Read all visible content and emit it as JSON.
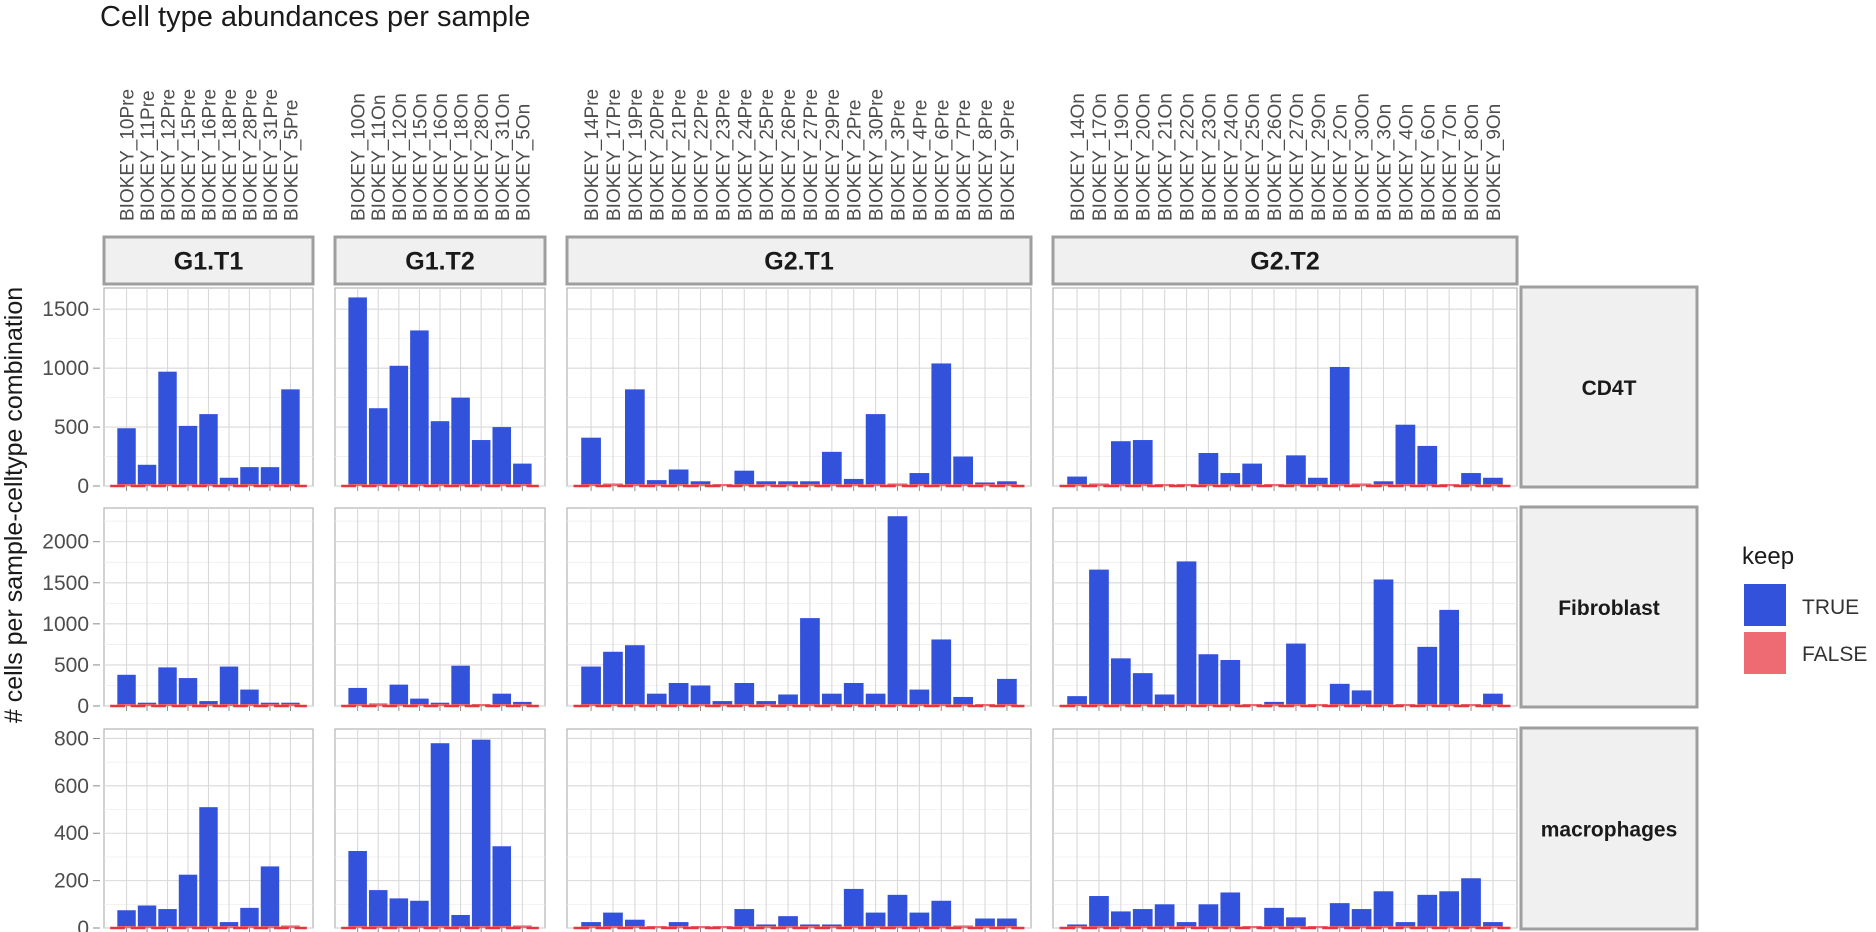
{
  "chart_data": {
    "type": "bar",
    "title": "Cell type abundances per sample",
    "ylabel": "# cells per sample-celltype combination",
    "xlabel": "",
    "grid": true,
    "legend": {
      "title": "keep",
      "position": "right",
      "entries": [
        {
          "label": "TRUE",
          "color": "#3352DC"
        },
        {
          "label": "FALSE",
          "color": "#EE6B73"
        }
      ]
    },
    "column_facets": [
      {
        "label": "G1.T1",
        "samples": [
          "BIOKEY_10Pre",
          "BIOKEY_11Pre",
          "BIOKEY_12Pre",
          "BIOKEY_15Pre",
          "BIOKEY_16Pre",
          "BIOKEY_18Pre",
          "BIOKEY_28Pre",
          "BIOKEY_31Pre",
          "BIOKEY_5Pre"
        ]
      },
      {
        "label": "G1.T2",
        "samples": [
          "BIOKEY_10On",
          "BIOKEY_11On",
          "BIOKEY_12On",
          "BIOKEY_15On",
          "BIOKEY_16On",
          "BIOKEY_18On",
          "BIOKEY_28On",
          "BIOKEY_31On",
          "BIOKEY_5On"
        ]
      },
      {
        "label": "G2.T1",
        "samples": [
          "BIOKEY_14Pre",
          "BIOKEY_17Pre",
          "BIOKEY_19Pre",
          "BIOKEY_20Pre",
          "BIOKEY_21Pre",
          "BIOKEY_22Pre",
          "BIOKEY_23Pre",
          "BIOKEY_24Pre",
          "BIOKEY_25Pre",
          "BIOKEY_26Pre",
          "BIOKEY_27Pre",
          "BIOKEY_29Pre",
          "BIOKEY_2Pre",
          "BIOKEY_30Pre",
          "BIOKEY_3Pre",
          "BIOKEY_4Pre",
          "BIOKEY_6Pre",
          "BIOKEY_7Pre",
          "BIOKEY_8Pre",
          "BIOKEY_9Pre"
        ]
      },
      {
        "label": "G2.T2",
        "samples": [
          "BIOKEY_14On",
          "BIOKEY_17On",
          "BIOKEY_19On",
          "BIOKEY_20On",
          "BIOKEY_21On",
          "BIOKEY_22On",
          "BIOKEY_23On",
          "BIOKEY_24On",
          "BIOKEY_25On",
          "BIOKEY_26On",
          "BIOKEY_27On",
          "BIOKEY_29On",
          "BIOKEY_2On",
          "BIOKEY_30On",
          "BIOKEY_3On",
          "BIOKEY_4On",
          "BIOKEY_6On",
          "BIOKEY_7On",
          "BIOKEY_8On",
          "BIOKEY_9On"
        ]
      }
    ],
    "row_facets": [
      {
        "label": "CD4T",
        "ylim": [
          0,
          1680
        ],
        "y_ticks": [
          0,
          500,
          1000,
          1500
        ],
        "keep_true": [
          [
            490,
            180,
            970,
            510,
            610,
            70,
            160,
            160,
            820
          ],
          [
            1600,
            660,
            1020,
            1320,
            550,
            750,
            390,
            500,
            190
          ],
          [
            410,
            20,
            820,
            50,
            140,
            40,
            0,
            130,
            40,
            40,
            40,
            290,
            60,
            610,
            20,
            110,
            1040,
            250,
            30,
            40
          ],
          [
            80,
            20,
            380,
            390,
            0,
            0,
            280,
            110,
            190,
            0,
            260,
            70,
            1010,
            20,
            40,
            520,
            340,
            0,
            110,
            70
          ]
        ],
        "keep_false": [
          [
            10,
            10,
            10,
            10,
            10,
            10,
            10,
            10,
            10
          ],
          [
            10,
            10,
            10,
            10,
            10,
            10,
            10,
            10,
            10
          ],
          [
            10,
            10,
            10,
            10,
            10,
            10,
            10,
            10,
            10,
            10,
            10,
            10,
            10,
            10,
            10,
            10,
            10,
            10,
            10,
            10
          ],
          [
            10,
            10,
            10,
            10,
            10,
            10,
            10,
            10,
            10,
            10,
            10,
            10,
            10,
            10,
            10,
            10,
            10,
            10,
            10,
            10
          ]
        ]
      },
      {
        "label": "Fibroblast",
        "ylim": [
          0,
          2410
        ],
        "y_ticks": [
          0,
          500,
          1000,
          1500,
          2000
        ],
        "keep_true": [
          [
            380,
            40,
            470,
            340,
            60,
            480,
            200,
            40,
            40
          ],
          [
            220,
            30,
            260,
            90,
            40,
            490,
            20,
            150,
            50
          ],
          [
            480,
            660,
            740,
            150,
            280,
            250,
            60,
            280,
            60,
            140,
            1070,
            150,
            280,
            150,
            2310,
            200,
            810,
            110,
            0,
            330
          ],
          [
            120,
            1660,
            580,
            400,
            140,
            1760,
            630,
            560,
            20,
            50,
            760,
            20,
            270,
            190,
            1540,
            20,
            720,
            1170,
            20,
            150
          ]
        ],
        "keep_false": [
          [
            15,
            15,
            15,
            15,
            15,
            15,
            15,
            15,
            15
          ],
          [
            15,
            15,
            15,
            15,
            15,
            15,
            15,
            15,
            15
          ],
          [
            15,
            15,
            15,
            15,
            15,
            15,
            15,
            15,
            15,
            15,
            15,
            15,
            15,
            15,
            15,
            15,
            15,
            15,
            15,
            15
          ],
          [
            15,
            15,
            15,
            15,
            15,
            15,
            15,
            15,
            15,
            15,
            15,
            15,
            15,
            15,
            15,
            15,
            15,
            15,
            15,
            15
          ]
        ]
      },
      {
        "label": "macrophages",
        "ylim": [
          0,
          840
        ],
        "y_ticks": [
          0,
          200,
          400,
          600,
          800
        ],
        "keep_true": [
          [
            75,
            95,
            80,
            225,
            510,
            25,
            85,
            260,
            10
          ],
          [
            325,
            160,
            125,
            115,
            780,
            55,
            795,
            345,
            10
          ],
          [
            25,
            65,
            35,
            0,
            25,
            0,
            0,
            80,
            15,
            50,
            15,
            15,
            165,
            65,
            140,
            65,
            115,
            10,
            40,
            40
          ],
          [
            15,
            135,
            70,
            80,
            100,
            25,
            100,
            150,
            0,
            85,
            45,
            0,
            105,
            80,
            155,
            25,
            140,
            155,
            210,
            25
          ]
        ],
        "keep_false": [
          [
            5,
            5,
            5,
            5,
            5,
            5,
            5,
            5,
            5
          ],
          [
            5,
            5,
            5,
            5,
            5,
            5,
            5,
            5,
            5
          ],
          [
            5,
            5,
            5,
            5,
            5,
            5,
            5,
            5,
            5,
            5,
            5,
            5,
            5,
            5,
            5,
            5,
            5,
            5,
            5,
            5
          ],
          [
            5,
            5,
            5,
            5,
            5,
            5,
            5,
            5,
            5,
            5,
            5,
            5,
            5,
            5,
            5,
            5,
            5,
            5,
            5,
            5
          ]
        ]
      }
    ]
  }
}
